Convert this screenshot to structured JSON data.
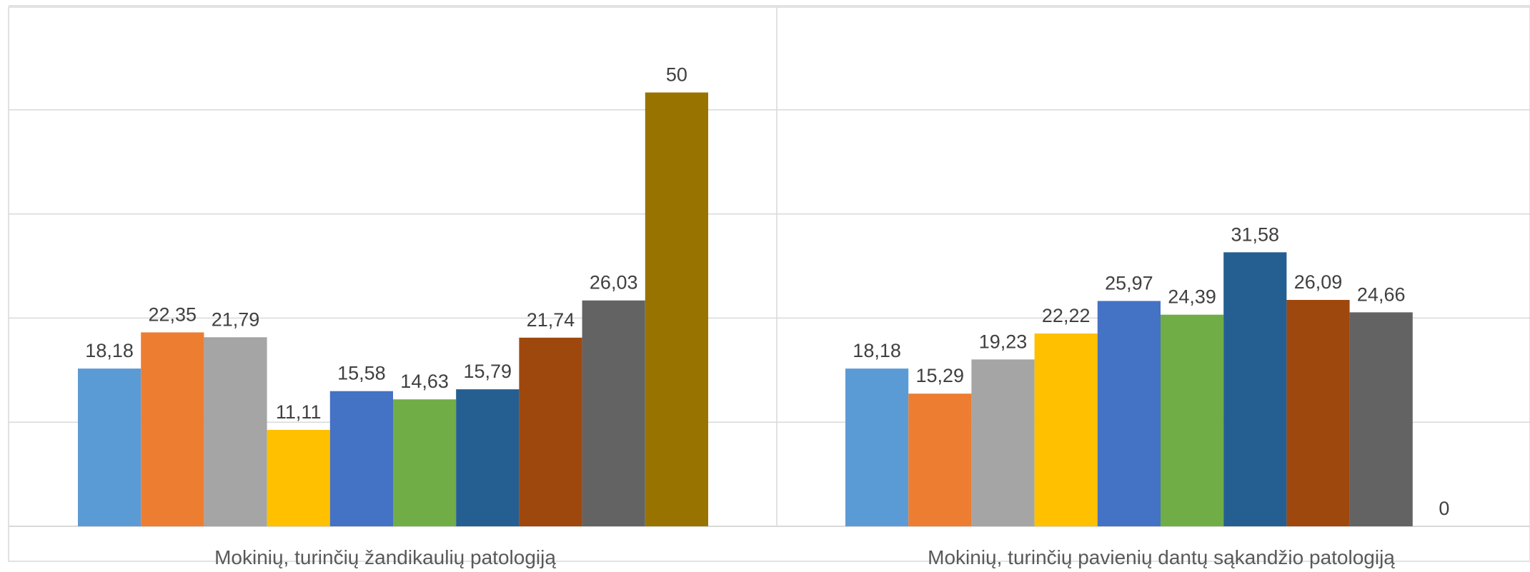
{
  "chart_data": {
    "type": "bar",
    "categories": [
      "Mokinių, turinčių žandikaulių patologiją",
      "Mokinių, turinčių pavienių dantų sąkandžio patologiją"
    ],
    "ylim": [
      0,
      60
    ],
    "grid": true,
    "series": [
      {
        "values": [
          18.18,
          18.18
        ],
        "labels": [
          "18,18",
          "18,18"
        ],
        "color": "#5B9BD5"
      },
      {
        "values": [
          22.35,
          15.29
        ],
        "labels": [
          "22,35",
          "15,29"
        ],
        "color": "#ED7D31"
      },
      {
        "values": [
          21.79,
          19.23
        ],
        "labels": [
          "21,79",
          "19,23"
        ],
        "color": "#A5A5A5"
      },
      {
        "values": [
          11.11,
          22.22
        ],
        "labels": [
          "11,11",
          "22,22"
        ],
        "color": "#FFC000"
      },
      {
        "values": [
          15.58,
          25.97
        ],
        "labels": [
          "15,58",
          "25,97"
        ],
        "color": "#4472C4"
      },
      {
        "values": [
          14.63,
          24.39
        ],
        "labels": [
          "14,63",
          "24,39"
        ],
        "color": "#70AD47"
      },
      {
        "values": [
          15.79,
          31.58
        ],
        "labels": [
          "15,79",
          "31,58"
        ],
        "color": "#255E91"
      },
      {
        "values": [
          21.74,
          26.09
        ],
        "labels": [
          "21,74",
          "26,09"
        ],
        "color": "#9E480E"
      },
      {
        "values": [
          26.03,
          24.66
        ],
        "labels": [
          "26,03",
          "24,66"
        ],
        "color": "#636363"
      },
      {
        "values": [
          50,
          0
        ],
        "labels": [
          "50",
          "0"
        ],
        "color": "#997300"
      }
    ]
  }
}
